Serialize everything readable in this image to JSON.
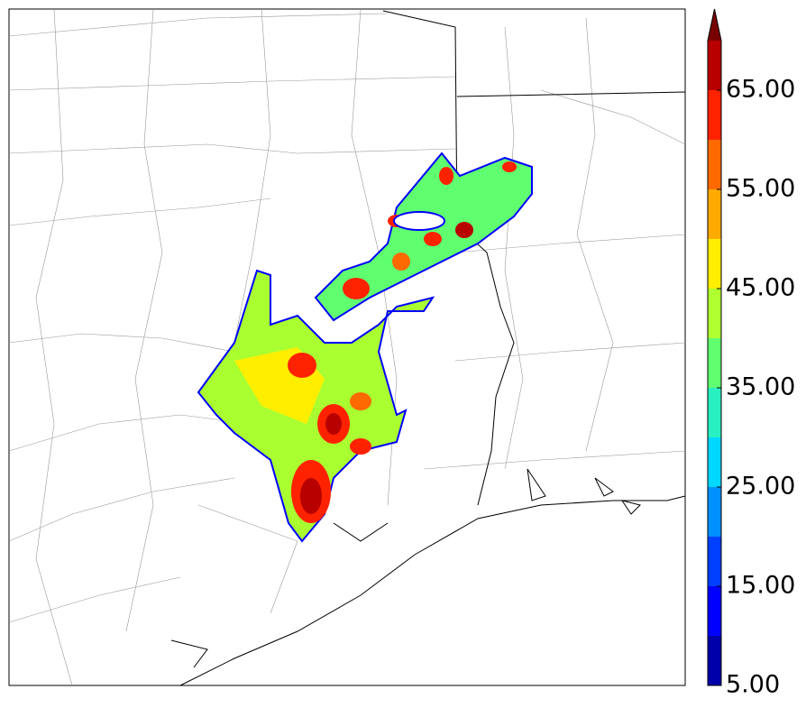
{
  "colorbar": {
    "levels": [
      5,
      10,
      15,
      20,
      25,
      30,
      35,
      40,
      45,
      50,
      55,
      60,
      65,
      70
    ],
    "colors": [
      "#0000a8",
      "#0000ff",
      "#0040ff",
      "#0090ff",
      "#00d8ff",
      "#28f0c0",
      "#60ff70",
      "#b0ff30",
      "#ffee00",
      "#ffaa00",
      "#ff6a00",
      "#ff2200",
      "#b80000"
    ],
    "extend_color": "#780000",
    "ticks": [
      {
        "value": 5,
        "label": "5.00"
      },
      {
        "value": 15,
        "label": "15.00"
      },
      {
        "value": 25,
        "label": "25.00"
      },
      {
        "value": 35,
        "label": "35.00"
      },
      {
        "value": 45,
        "label": "45.00"
      },
      {
        "value": 55,
        "label": "55.00"
      },
      {
        "value": 65,
        "label": "65.00"
      }
    ]
  }
}
